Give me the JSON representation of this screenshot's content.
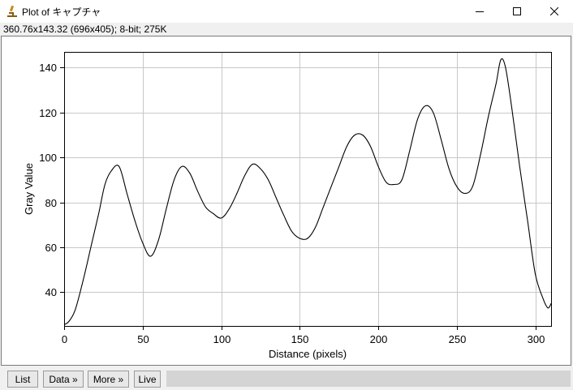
{
  "window": {
    "title": "Plot of キャプチャ",
    "info": "360.76x143.32   (696x405); 8-bit; 275K"
  },
  "chart_data": {
    "type": "line",
    "title": "",
    "xlabel": "Distance (pixels)",
    "ylabel": "Gray Value",
    "xlim": [
      0,
      310
    ],
    "ylim": [
      25,
      147
    ],
    "xticks": [
      0,
      50,
      100,
      150,
      200,
      250,
      300
    ],
    "yticks": [
      40,
      60,
      80,
      100,
      120,
      140
    ],
    "grid": true,
    "series": [
      {
        "color": "#000000",
        "x": [
          0,
          3,
          7,
          12,
          17,
          22,
          26,
          30,
          35,
          40,
          45,
          50,
          55,
          60,
          65,
          70,
          75,
          80,
          85,
          90,
          95,
          100,
          105,
          110,
          115,
          120,
          125,
          130,
          135,
          140,
          145,
          150,
          155,
          160,
          165,
          170,
          175,
          180,
          185,
          190,
          195,
          200,
          205,
          210,
          215,
          220,
          225,
          230,
          235,
          240,
          245,
          250,
          255,
          260,
          265,
          270,
          275,
          278,
          281,
          285,
          290,
          295,
          300,
          305,
          308,
          310
        ],
        "y": [
          25.5,
          27,
          32,
          45,
          60,
          75,
          88,
          94,
          96,
          84,
          72,
          62,
          56,
          63,
          77,
          90,
          96,
          93,
          85,
          78,
          75,
          73,
          77,
          84,
          92,
          97,
          95,
          90,
          82,
          74,
          67,
          64,
          64,
          69,
          78,
          87,
          96,
          105,
          110,
          110,
          105,
          96,
          89,
          88,
          90,
          103,
          117,
          123,
          120,
          108,
          95,
          87,
          84,
          87,
          101,
          118,
          133,
          143.5,
          140,
          122,
          96,
          72,
          48,
          37,
          33,
          35
        ]
      }
    ]
  },
  "buttons": {
    "list": "List",
    "data": "Data »",
    "more": "More »",
    "live": "Live"
  }
}
